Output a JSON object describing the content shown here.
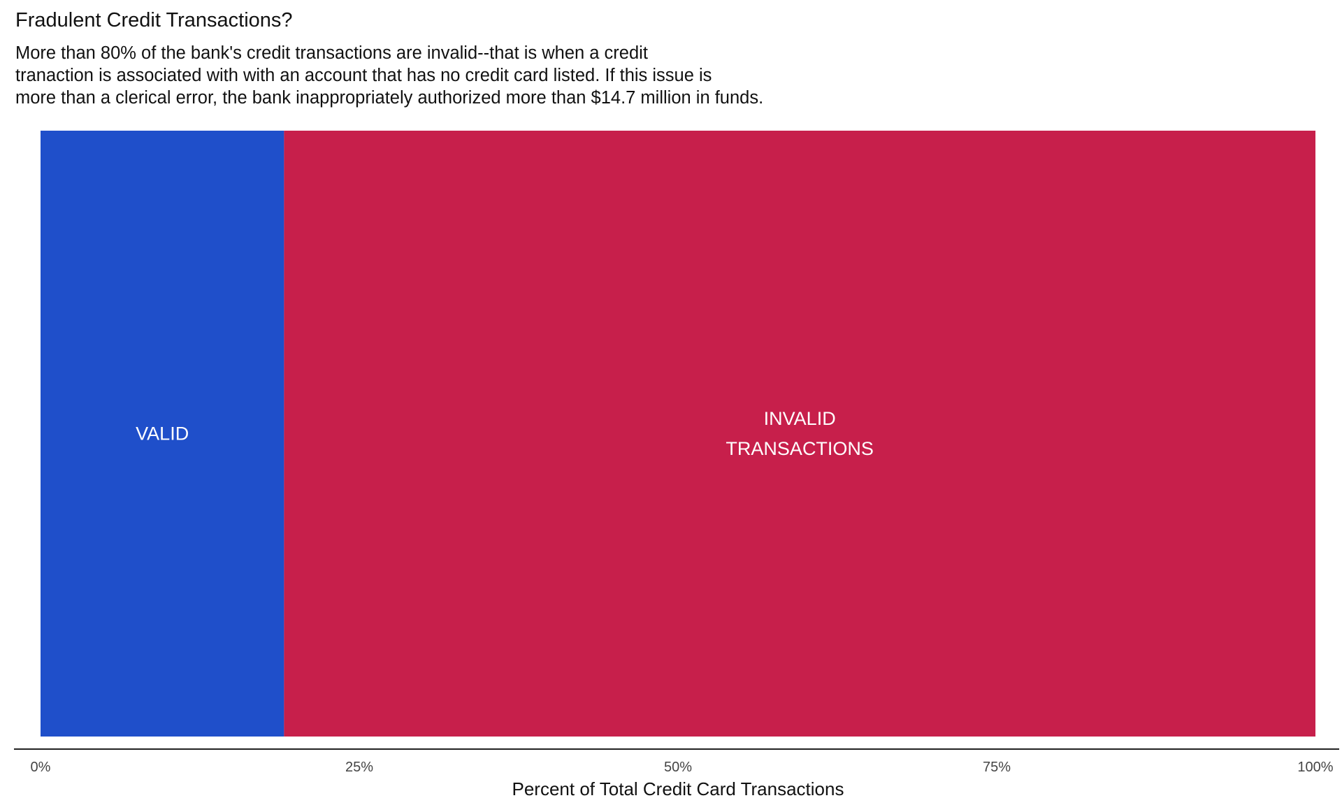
{
  "chart_data": {
    "type": "bar",
    "orientation": "horizontal-stacked",
    "title": "Fradulent Credit Transactions?",
    "subtitle_lines": [
      "More than 80% of the bank's credit transactions are invalid--that is when a credit",
      "tranaction is associated with with an account that has no credit card listed. If this issue is",
      "more than a clerical error, the bank inappropriately authorized more than $14.7 million in funds."
    ],
    "xlabel": "Percent of Total Credit Card Transactions",
    "ylabel": "",
    "xlim": [
      0,
      1
    ],
    "x_ticks": [
      0,
      0.25,
      0.5,
      0.75,
      1
    ],
    "x_tick_labels": [
      "0%",
      "25%",
      "50%",
      "75%",
      "100%"
    ],
    "grid": false,
    "legend": "none",
    "series": [
      {
        "label_lines": [
          "VALID"
        ],
        "value": 0.191,
        "color": "#1f4fca"
      },
      {
        "label_lines": [
          "INVALID",
          "TRANSACTIONS"
        ],
        "value": 0.809,
        "color": "#c71f4b"
      }
    ]
  }
}
